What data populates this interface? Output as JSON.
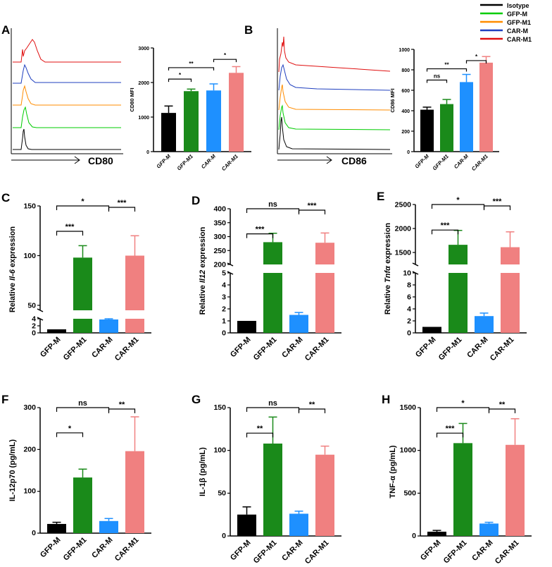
{
  "figure": {
    "legend": {
      "entries": [
        {
          "name": "Isotype",
          "color": "#000000"
        },
        {
          "name": "GFP-M",
          "color": "#00cc00"
        },
        {
          "name": "GFP-M1",
          "color": "#ff8c00"
        },
        {
          "name": "CAR-M",
          "color": "#1f3fbf"
        },
        {
          "name": "CAR-M1",
          "color": "#e01010"
        }
      ]
    },
    "flow_A": {
      "panel": "A",
      "xlabel": "CD80"
    },
    "flow_B": {
      "panel": "B",
      "xlabel": "CD86"
    }
  },
  "colors": {
    "GFP-M": "#000000",
    "GFP-M1": "#1a8a1a",
    "CAR-M": "#1e90ff",
    "CAR-M1": "#f08080"
  },
  "chart_data": [
    {
      "id": "A_bar",
      "type": "bar",
      "panel": "A",
      "categories": [
        "GFP-M",
        "GFP-M1",
        "CAR-M",
        "CAR-M1"
      ],
      "values": [
        1120,
        1750,
        1770,
        2280
      ],
      "errors": [
        200,
        60,
        190,
        180
      ],
      "ylabel": "CD80 MFI",
      "ylim": [
        0,
        3000
      ],
      "yticks": [
        0,
        1000,
        2000,
        3000
      ],
      "significance": [
        {
          "from": 0,
          "to": 1,
          "label": "*"
        },
        {
          "from": 0,
          "to": 2,
          "label": "**"
        },
        {
          "from": 2,
          "to": 3,
          "label": "*"
        }
      ]
    },
    {
      "id": "B_bar",
      "type": "bar",
      "panel": "B",
      "categories": [
        "GFP-M",
        "GFP-M1",
        "CAR-M",
        "CAR-M1"
      ],
      "values": [
        410,
        465,
        680,
        870
      ],
      "errors": [
        25,
        45,
        75,
        60
      ],
      "ylabel": "CD86 MFI",
      "ylim": [
        0,
        1000
      ],
      "yticks": [
        0,
        200,
        400,
        600,
        800,
        1000
      ],
      "significance": [
        {
          "from": 0,
          "to": 1,
          "label": "ns"
        },
        {
          "from": 0,
          "to": 2,
          "label": "**"
        },
        {
          "from": 2,
          "to": 3,
          "label": "*"
        }
      ]
    },
    {
      "id": "C",
      "type": "bar",
      "panel": "C",
      "categories": [
        "GFP-M",
        "GFP-M1",
        "CAR-M",
        "CAR-M1"
      ],
      "values": [
        1,
        98,
        3.8,
        100
      ],
      "errors": [
        0,
        12,
        0.7,
        20
      ],
      "ylabel_pre": "Relative ",
      "ylabel_gene": "Il-6",
      "ylabel_post": "  expression",
      "ylim": [
        0,
        150
      ],
      "yticks_lower": [
        0,
        2,
        4
      ],
      "yticks_upper": [
        50,
        100,
        150
      ],
      "significance": [
        {
          "from": 0,
          "to": 1,
          "label": "***"
        },
        {
          "from": 0,
          "to": 2,
          "label": "*"
        },
        {
          "from": 2,
          "to": 3,
          "label": "***"
        }
      ]
    },
    {
      "id": "D",
      "type": "bar",
      "panel": "D",
      "categories": [
        "GFP-M",
        "GFP-M1",
        "CAR-M",
        "CAR-M1"
      ],
      "values": [
        1,
        280,
        1.5,
        278
      ],
      "errors": [
        0,
        32,
        0.2,
        35
      ],
      "ylabel_pre": "Relative ",
      "ylabel_gene": "Il12",
      "ylabel_post": " expression",
      "ylim": [
        0,
        400
      ],
      "yticks_lower": [
        0,
        1,
        2,
        3,
        4,
        5
      ],
      "yticks_upper": [
        200,
        250,
        300,
        350,
        400
      ],
      "significance": [
        {
          "from": 0,
          "to": 1,
          "label": "***"
        },
        {
          "from": 0,
          "to": 2,
          "label": "ns"
        },
        {
          "from": 2,
          "to": 3,
          "label": "***"
        }
      ]
    },
    {
      "id": "E",
      "type": "bar",
      "panel": "E",
      "categories": [
        "GFP-M",
        "GFP-M1",
        "CAR-M",
        "CAR-M1"
      ],
      "values": [
        1,
        1660,
        2.8,
        1610
      ],
      "errors": [
        0,
        300,
        0.5,
        320
      ],
      "ylabel_pre": "Relative ",
      "ylabel_gene": "Tnfα",
      "ylabel_post": " expression",
      "ylim": [
        0,
        2500
      ],
      "yticks_lower": [
        0,
        2,
        4,
        6,
        8,
        10
      ],
      "yticks_upper": [
        1500,
        2000,
        2500
      ],
      "significance": [
        {
          "from": 0,
          "to": 1,
          "label": "***"
        },
        {
          "from": 0,
          "to": 2,
          "label": "*"
        },
        {
          "from": 2,
          "to": 3,
          "label": "***"
        }
      ]
    },
    {
      "id": "F",
      "type": "bar",
      "panel": "F",
      "categories": [
        "GFP-M",
        "GFP-M1",
        "CAR-M",
        "CAR-M1"
      ],
      "values": [
        22,
        133,
        29,
        196
      ],
      "errors": [
        4,
        20,
        6,
        82
      ],
      "ylabel": "IL-12p70 (pg/mL)",
      "ylim": [
        0,
        300
      ],
      "yticks": [
        0,
        100,
        200,
        300
      ],
      "significance": [
        {
          "from": 0,
          "to": 1,
          "label": "*"
        },
        {
          "from": 0,
          "to": 2,
          "label": "ns"
        },
        {
          "from": 2,
          "to": 3,
          "label": "**"
        }
      ]
    },
    {
      "id": "G",
      "type": "bar",
      "panel": "G",
      "categories": [
        "GFP-M",
        "GFP-M1",
        "CAR-M",
        "CAR-M1"
      ],
      "values": [
        25,
        108,
        26,
        95
      ],
      "errors": [
        9,
        31,
        3,
        10
      ],
      "ylabel": "IL-1β (pg/mL)",
      "ylim": [
        0,
        150
      ],
      "yticks": [
        0,
        50,
        100,
        150
      ],
      "significance": [
        {
          "from": 0,
          "to": 1,
          "label": "**"
        },
        {
          "from": 0,
          "to": 2,
          "label": "ns"
        },
        {
          "from": 2,
          "to": 3,
          "label": "**"
        }
      ]
    },
    {
      "id": "H",
      "type": "bar",
      "panel": "H",
      "categories": [
        "GFP-M",
        "GFP-M1",
        "CAR-M",
        "CAR-M1"
      ],
      "values": [
        50,
        1085,
        145,
        1065
      ],
      "errors": [
        15,
        230,
        15,
        305
      ],
      "ylabel": "TNF-α (pg/mL)",
      "ylim": [
        0,
        1500
      ],
      "yticks": [
        0,
        500,
        1000,
        1500
      ],
      "significance": [
        {
          "from": 0,
          "to": 1,
          "label": "***"
        },
        {
          "from": 0,
          "to": 2,
          "label": "*"
        },
        {
          "from": 2,
          "to": 3,
          "label": "**"
        }
      ]
    }
  ]
}
